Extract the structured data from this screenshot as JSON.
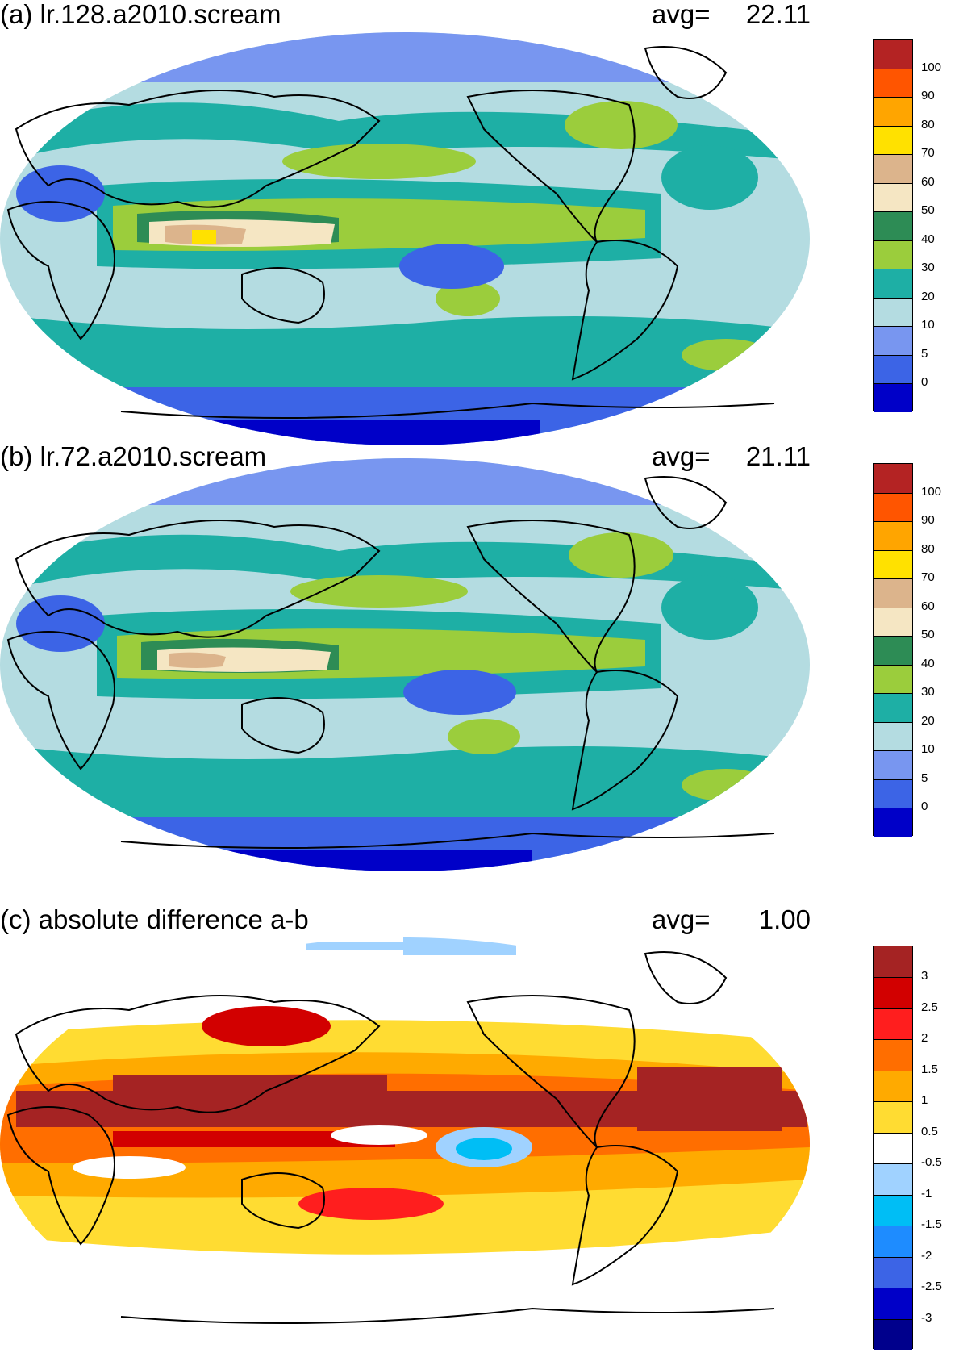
{
  "panels": [
    {
      "id": "a",
      "title": "(a) lr.128.a2010.scream",
      "avg_label": "avg=",
      "avg_value": "22.11",
      "colorbar": {
        "colors": [
          "#0000c8",
          "#3c64e6",
          "#7896f0",
          "#b4dce1",
          "#1eafa5",
          "#9bcd3c",
          "#2d8c55",
          "#f5e6c3",
          "#dcb48c",
          "#ffe100",
          "#ffa500",
          "#ff5500",
          "#b42323"
        ],
        "labels": [
          "0",
          "5",
          "10",
          "20",
          "30",
          "40",
          "50",
          "60",
          "70",
          "80",
          "90",
          "100"
        ]
      }
    },
    {
      "id": "b",
      "title": "(b) lr.72.a2010.scream",
      "avg_label": "avg=",
      "avg_value": "21.11",
      "colorbar": {
        "colors": [
          "#0000c8",
          "#3c64e6",
          "#7896f0",
          "#b4dce1",
          "#1eafa5",
          "#9bcd3c",
          "#2d8c55",
          "#f5e6c3",
          "#dcb48c",
          "#ffe100",
          "#ffa500",
          "#ff5500",
          "#b42323"
        ],
        "labels": [
          "0",
          "5",
          "10",
          "20",
          "30",
          "40",
          "50",
          "60",
          "70",
          "80",
          "90",
          "100"
        ]
      }
    },
    {
      "id": "c",
      "title": "(c) absolute difference a-b",
      "avg_label": "avg=",
      "avg_value": "1.00",
      "colorbar": {
        "colors": [
          "#00008c",
          "#0000c8",
          "#3c64e6",
          "#1e8cff",
          "#00bef5",
          "#a0d2ff",
          "#ffffff",
          "#ffdc32",
          "#ffaa00",
          "#ff6e00",
          "#ff1e1e",
          "#d20000",
          "#a52323"
        ],
        "labels": [
          "-3",
          "-2.5",
          "-2",
          "-1.5",
          "-1",
          "-0.5",
          "0.5",
          "1",
          "1.5",
          "2",
          "2.5",
          "3"
        ]
      }
    }
  ]
}
